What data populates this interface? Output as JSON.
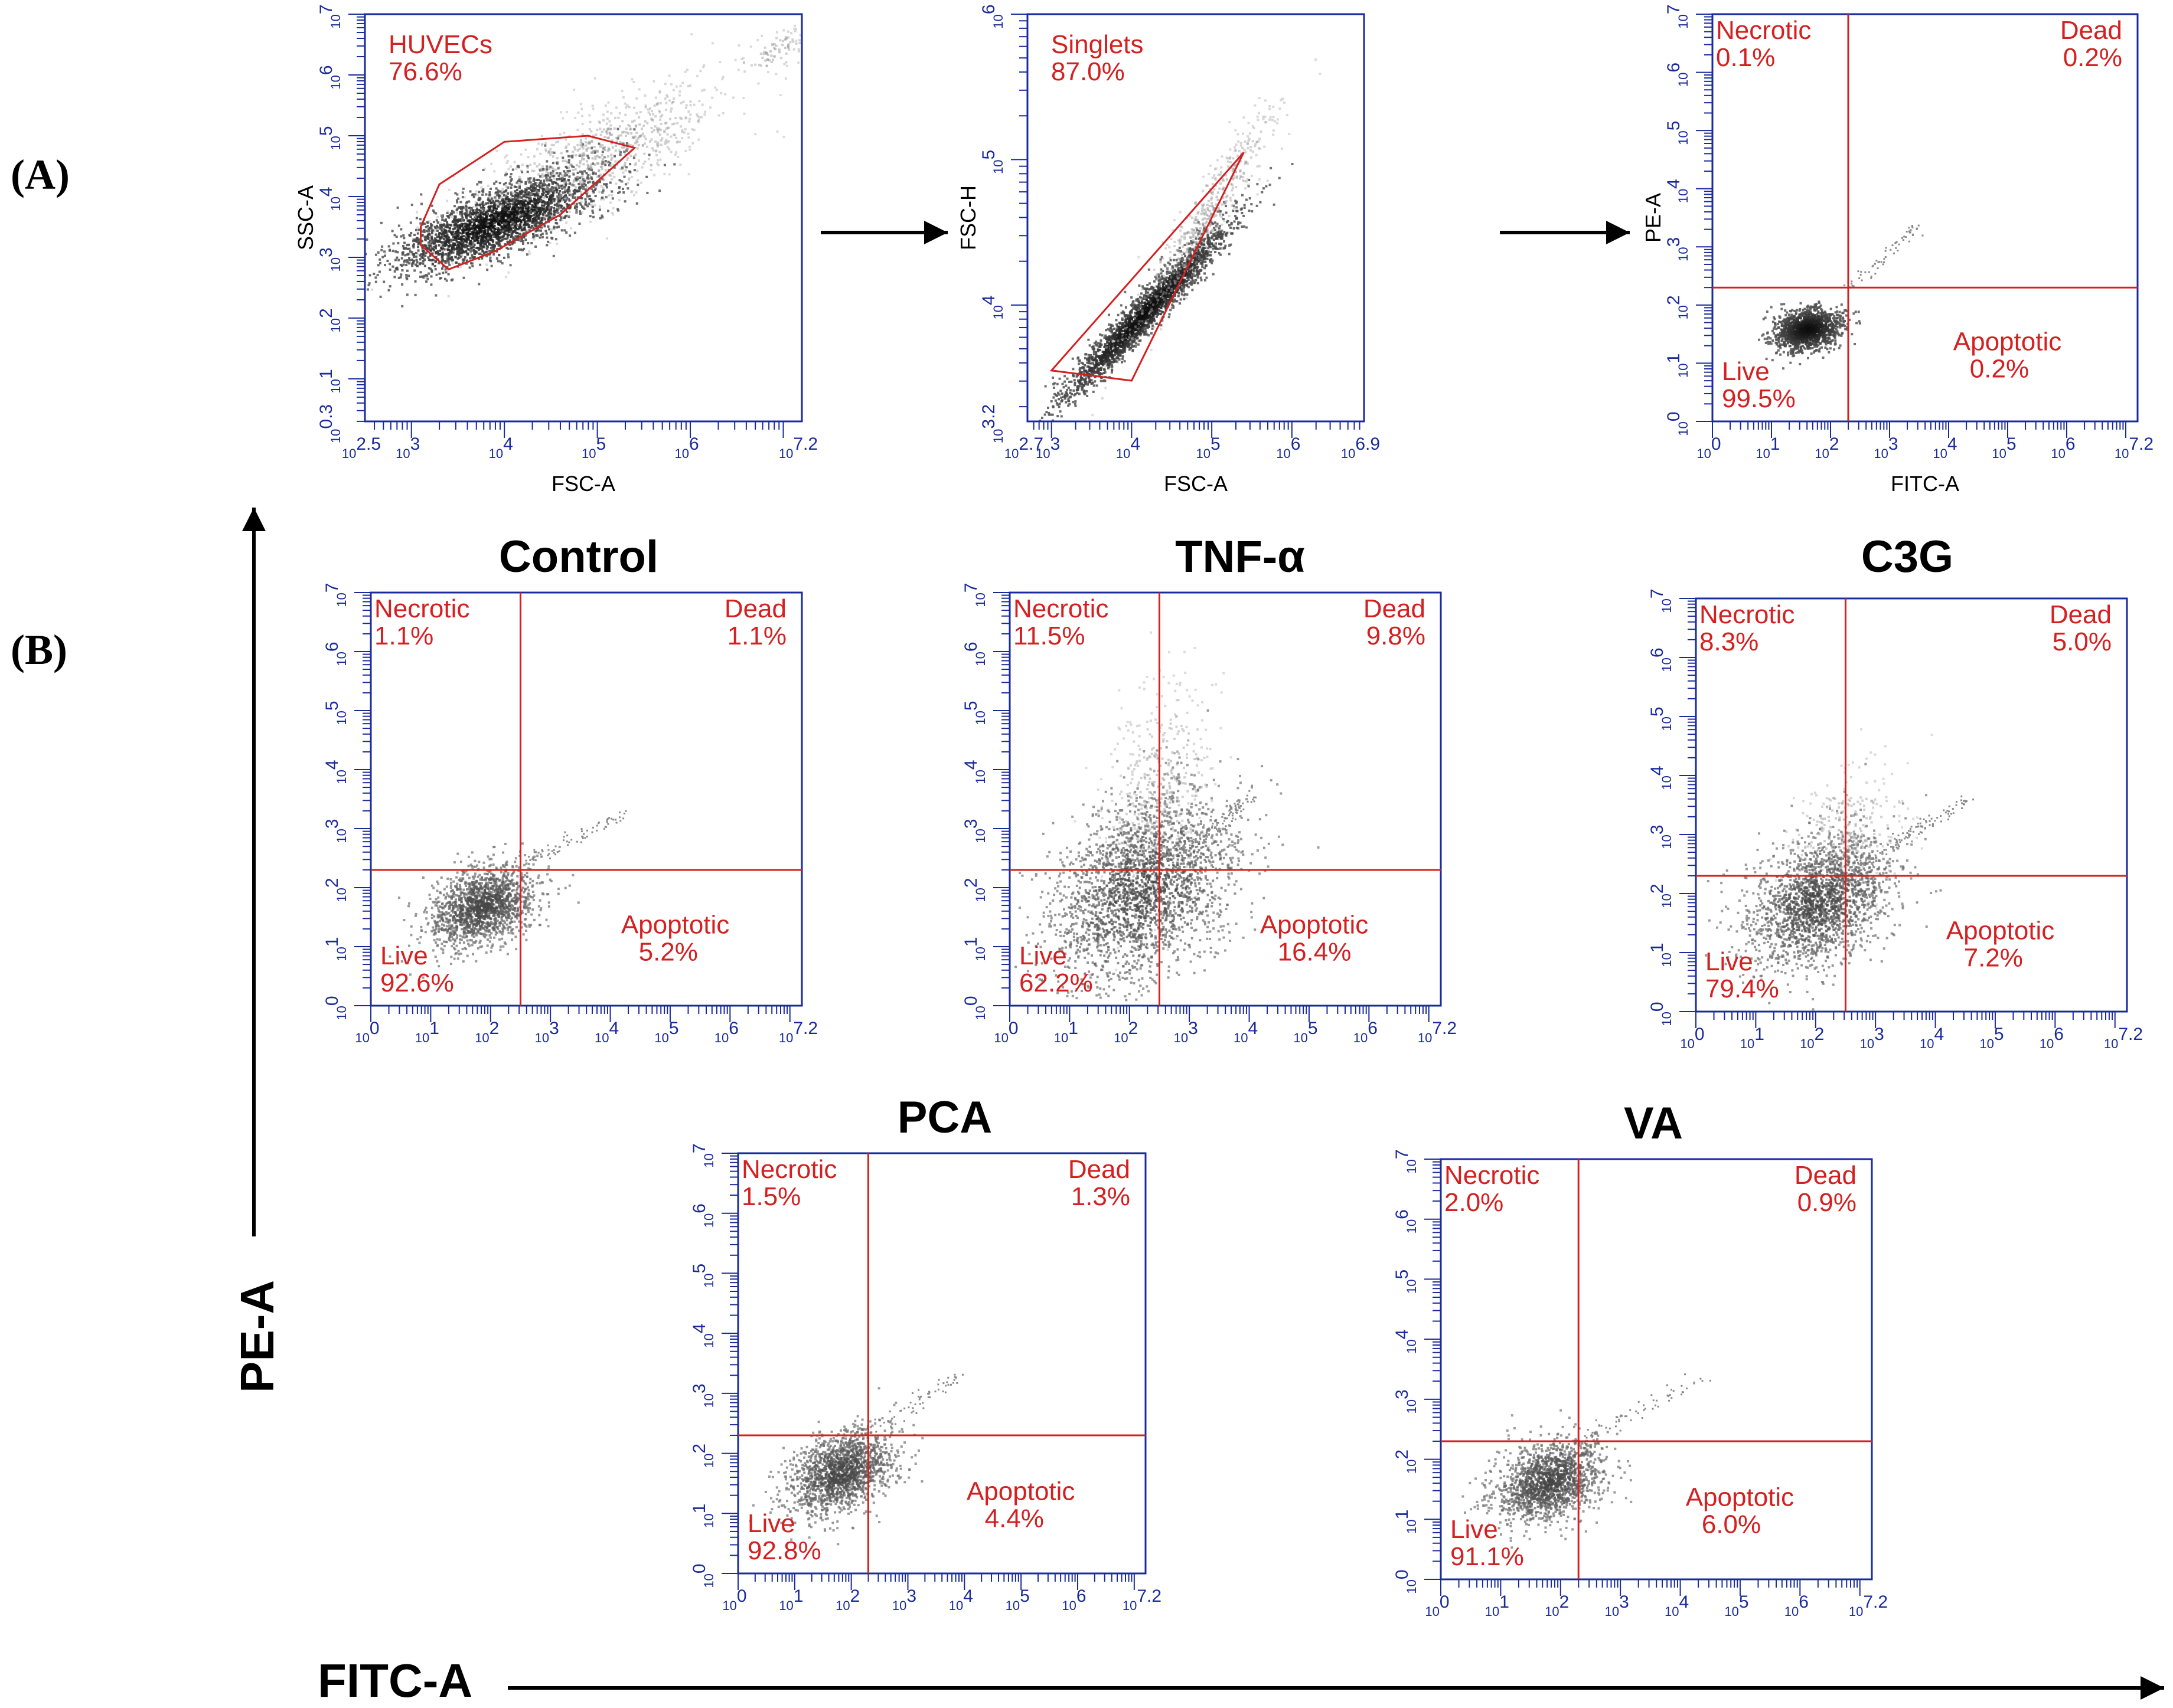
{
  "panels": {
    "a": "(A)",
    "b": "(B)"
  },
  "global_axes": {
    "x": "FITC-A",
    "y": "PE-A"
  },
  "colors": {
    "frame": "#1a2a9c",
    "gate": "#d42020",
    "tick": "#1a2a9c",
    "arrow": "#000000"
  },
  "chart_data": [
    {
      "id": "huvecs",
      "type": "scatter",
      "xlabel": "FSC-A",
      "ylabel": "SSC-A",
      "xlim": [
        2.5,
        7.2
      ],
      "ylim": [
        0.3,
        7.0
      ],
      "xticks": [
        "10^2.5",
        "10^3",
        "10^4",
        "10^5",
        "10^6",
        "10^7.2"
      ],
      "yticks": [
        "10^0.3",
        "10^1",
        "10^2",
        "10^3",
        "10^4",
        "10^5",
        "10^6",
        "10^7"
      ],
      "gate": {
        "name": "HUVECs",
        "percent": "76.6%",
        "polygon": [
          [
            3.1,
            3.5
          ],
          [
            3.3,
            4.2
          ],
          [
            4.0,
            4.9
          ],
          [
            4.9,
            5.0
          ],
          [
            5.4,
            4.8
          ],
          [
            4.6,
            3.7
          ],
          [
            3.9,
            3.1
          ],
          [
            3.4,
            2.8
          ],
          [
            3.1,
            3.2
          ]
        ]
      },
      "populations": [
        {
          "mx": 3.9,
          "my": 3.6,
          "sx": 0.55,
          "sy": 0.42,
          "rho": 0.75,
          "n": 2600,
          "density": "high"
        },
        {
          "mx": 4.9,
          "my": 4.6,
          "sx": 0.75,
          "sy": 0.7,
          "rho": 0.8,
          "n": 900,
          "density": "low"
        },
        {
          "mx": 6.9,
          "my": 6.4,
          "sx": 0.18,
          "sy": 0.2,
          "rho": 0.6,
          "n": 80,
          "density": "low"
        }
      ]
    },
    {
      "id": "singlets",
      "type": "scatter",
      "xlabel": "FSC-A",
      "ylabel": "FSC-H",
      "xlim": [
        2.7,
        6.9
      ],
      "ylim": [
        3.2,
        6.0
      ],
      "xticks": [
        "10^2.7",
        "10^3",
        "10^4",
        "10^5",
        "10^6",
        "10^6.9"
      ],
      "yticks": [
        "10^3.2",
        "10^4",
        "10^5",
        "10^6"
      ],
      "gate": {
        "name": "Singlets",
        "percent": "87.0%",
        "polygon": [
          [
            3.0,
            3.55
          ],
          [
            5.4,
            5.05
          ],
          [
            4.0,
            3.48
          ],
          [
            3.0,
            3.55
          ]
        ]
      },
      "populations": [
        {
          "mx": 4.15,
          "my": 3.95,
          "sx": 0.55,
          "sy": 0.32,
          "rho": 0.97,
          "n": 2200,
          "density": "high"
        },
        {
          "mx": 4.9,
          "my": 4.6,
          "sx": 0.45,
          "sy": 0.4,
          "rho": 0.94,
          "n": 500,
          "density": "low"
        }
      ]
    },
    {
      "id": "gating-quadrant",
      "type": "scatter",
      "xlabel": "FITC-A",
      "ylabel": "PE-A",
      "xlim": [
        0,
        7.2
      ],
      "ylim": [
        0,
        7
      ],
      "xticks": [
        "10^0",
        "10^1",
        "10^2",
        "10^3",
        "10^4",
        "10^5",
        "10^6",
        "10^7.2"
      ],
      "yticks": [
        "10^0",
        "10^1",
        "10^2",
        "10^3",
        "10^4",
        "10^5",
        "10^6",
        "10^7"
      ],
      "quadrant_split": {
        "x": 2.3,
        "y": 2.3
      },
      "quadrants": {
        "necrotic": [
          "Necrotic",
          "0.1%"
        ],
        "dead": [
          "Dead",
          "0.2%"
        ],
        "apoptotic": [
          "Apoptotic",
          "0.2%"
        ],
        "live": [
          "Live",
          "99.5%"
        ]
      },
      "populations": [
        {
          "mx": 1.6,
          "my": 1.6,
          "sx": 0.28,
          "sy": 0.18,
          "rho": 0.2,
          "n": 1300,
          "density": "high"
        }
      ],
      "diagonal_tail": {
        "from": [
          2.3,
          2.3
        ],
        "to": [
          3.5,
          3.4
        ],
        "n": 60
      }
    },
    {
      "id": "control",
      "type": "scatter",
      "title": "Control",
      "xlim": [
        0,
        7.2
      ],
      "ylim": [
        0,
        7
      ],
      "xticks": [
        "10^0",
        "10^1",
        "10^2",
        "10^3",
        "10^4",
        "10^5",
        "10^6",
        "10^7.2"
      ],
      "yticks": [
        "10^0",
        "10^1",
        "10^2",
        "10^3",
        "10^4",
        "10^5",
        "10^6",
        "10^7"
      ],
      "quadrant_split": {
        "x": 2.5,
        "y": 2.3
      },
      "quadrants": {
        "necrotic": [
          "Necrotic",
          "1.1%"
        ],
        "dead": [
          "Dead",
          "1.1%"
        ],
        "apoptotic": [
          "Apoptotic",
          "5.2%"
        ],
        "live": [
          "Live",
          "92.6%"
        ]
      },
      "populations": [
        {
          "mx": 1.85,
          "my": 1.7,
          "sx": 0.45,
          "sy": 0.35,
          "rho": 0.35,
          "n": 1600,
          "density": "mid"
        }
      ],
      "diagonal_tail": {
        "from": [
          2.5,
          2.4
        ],
        "to": [
          4.3,
          3.3
        ],
        "n": 70
      }
    },
    {
      "id": "tnf-alpha",
      "type": "scatter",
      "title": "TNF-α",
      "xlim": [
        0,
        7.2
      ],
      "ylim": [
        0,
        7
      ],
      "xticks": [
        "10^0",
        "10^1",
        "10^2",
        "10^3",
        "10^4",
        "10^5",
        "10^6",
        "10^7.2"
      ],
      "yticks": [
        "10^0",
        "10^1",
        "10^2",
        "10^3",
        "10^4",
        "10^5",
        "10^6",
        "10^7"
      ],
      "quadrant_split": {
        "x": 2.5,
        "y": 2.3
      },
      "quadrants": {
        "necrotic": [
          "Necrotic",
          "11.5%"
        ],
        "dead": [
          "Dead",
          "9.8%"
        ],
        "apoptotic": [
          "Apoptotic",
          "16.4%"
        ],
        "live": [
          "Live",
          "62.2%"
        ]
      },
      "populations": [
        {
          "mx": 2.2,
          "my": 2.0,
          "sx": 0.75,
          "sy": 0.8,
          "rho": 0.35,
          "n": 2400,
          "density": "mid"
        },
        {
          "mx": 2.5,
          "my": 3.6,
          "sx": 0.45,
          "sy": 0.9,
          "rho": 0.3,
          "n": 500,
          "density": "low"
        }
      ],
      "diagonal_tail": {
        "from": [
          2.6,
          2.4
        ],
        "to": [
          4.1,
          3.6
        ],
        "n": 120
      }
    },
    {
      "id": "c3g",
      "type": "scatter",
      "title": "C3G",
      "xlim": [
        0,
        7.2
      ],
      "ylim": [
        0,
        7
      ],
      "xticks": [
        "10^0",
        "10^1",
        "10^2",
        "10^3",
        "10^4",
        "10^5",
        "10^6",
        "10^7.2"
      ],
      "yticks": [
        "10^0",
        "10^1",
        "10^2",
        "10^3",
        "10^4",
        "10^5",
        "10^6",
        "10^7"
      ],
      "quadrant_split": {
        "x": 2.5,
        "y": 2.3
      },
      "quadrants": {
        "necrotic": [
          "Necrotic",
          "8.3%"
        ],
        "dead": [
          "Dead",
          "5.0%"
        ],
        "apoptotic": [
          "Apoptotic",
          "7.2%"
        ],
        "live": [
          "Live",
          "79.4%"
        ]
      },
      "populations": [
        {
          "mx": 2.05,
          "my": 1.9,
          "sx": 0.6,
          "sy": 0.55,
          "rho": 0.35,
          "n": 2000,
          "density": "mid"
        },
        {
          "mx": 2.4,
          "my": 3.0,
          "sx": 0.5,
          "sy": 0.6,
          "rho": 0.3,
          "n": 300,
          "density": "low"
        }
      ],
      "diagonal_tail": {
        "from": [
          2.6,
          2.4
        ],
        "to": [
          4.5,
          3.6
        ],
        "n": 120
      }
    },
    {
      "id": "pca",
      "type": "scatter",
      "title": "PCA",
      "xlim": [
        0,
        7.2
      ],
      "ylim": [
        0,
        7
      ],
      "xticks": [
        "10^0",
        "10^1",
        "10^2",
        "10^3",
        "10^4",
        "10^5",
        "10^6",
        "10^7.2"
      ],
      "yticks": [
        "10^0",
        "10^1",
        "10^2",
        "10^3",
        "10^4",
        "10^5",
        "10^6",
        "10^7"
      ],
      "quadrant_split": {
        "x": 2.3,
        "y": 2.3
      },
      "quadrants": {
        "necrotic": [
          "Necrotic",
          "1.5%"
        ],
        "dead": [
          "Dead",
          "1.3%"
        ],
        "apoptotic": [
          "Apoptotic",
          "4.4%"
        ],
        "live": [
          "Live",
          "92.8%"
        ]
      },
      "populations": [
        {
          "mx": 1.8,
          "my": 1.7,
          "sx": 0.45,
          "sy": 0.35,
          "rho": 0.35,
          "n": 1600,
          "density": "mid"
        }
      ],
      "diagonal_tail": {
        "from": [
          2.4,
          2.4
        ],
        "to": [
          4.0,
          3.4
        ],
        "n": 60
      }
    },
    {
      "id": "va",
      "type": "scatter",
      "title": "VA",
      "xlim": [
        0,
        7.2
      ],
      "ylim": [
        0,
        7
      ],
      "xticks": [
        "10^0",
        "10^1",
        "10^2",
        "10^3",
        "10^4",
        "10^5",
        "10^6",
        "10^7.2"
      ],
      "yticks": [
        "10^0",
        "10^1",
        "10^2",
        "10^3",
        "10^4",
        "10^5",
        "10^6",
        "10^7"
      ],
      "quadrant_split": {
        "x": 2.3,
        "y": 2.3
      },
      "quadrants": {
        "necrotic": [
          "Necrotic",
          "2.0%"
        ],
        "dead": [
          "Dead",
          "0.9%"
        ],
        "apoptotic": [
          "Apoptotic",
          "6.0%"
        ],
        "live": [
          "Live",
          "91.1%"
        ]
      },
      "populations": [
        {
          "mx": 1.8,
          "my": 1.65,
          "sx": 0.45,
          "sy": 0.35,
          "rho": 0.35,
          "n": 1600,
          "density": "mid"
        }
      ],
      "diagonal_tail": {
        "from": [
          2.4,
          2.4
        ],
        "to": [
          4.4,
          3.4
        ],
        "n": 60
      }
    }
  ]
}
